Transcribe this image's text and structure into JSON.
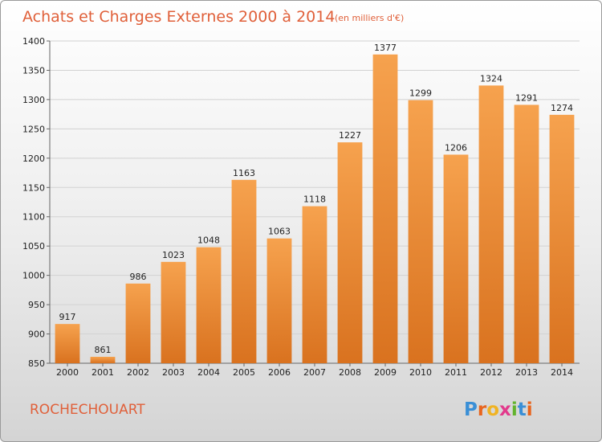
{
  "chart_data": {
    "type": "bar",
    "title": "Achats et Charges Externes 2000 à 2014",
    "subtitle": "(en milliers d'€)",
    "categories": [
      "2000",
      "2001",
      "2002",
      "2003",
      "2004",
      "2005",
      "2006",
      "2007",
      "2008",
      "2009",
      "2010",
      "2011",
      "2012",
      "2013",
      "2014"
    ],
    "values": [
      917,
      861,
      986,
      1023,
      1048,
      1163,
      1063,
      1118,
      1227,
      1377,
      1299,
      1206,
      1324,
      1291,
      1274
    ],
    "ylim": [
      850,
      1400
    ],
    "yticks": [
      850,
      900,
      950,
      1000,
      1050,
      1100,
      1150,
      1200,
      1250,
      1300,
      1350,
      1400
    ],
    "grid": true,
    "bar_color_top": "#f6a24e",
    "bar_color_bottom": "#d9721f"
  },
  "footer": {
    "location": "ROCHECHOUART",
    "brand": "Proxiti",
    "brand_letters": [
      "P",
      "r",
      "o",
      "x",
      "i",
      "t",
      "i"
    ],
    "brand_colors": [
      "#3a8fd6",
      "#e8651e",
      "#f0b323",
      "#e23a8c",
      "#63b32e",
      "#3a8fd6",
      "#e8651e"
    ]
  }
}
